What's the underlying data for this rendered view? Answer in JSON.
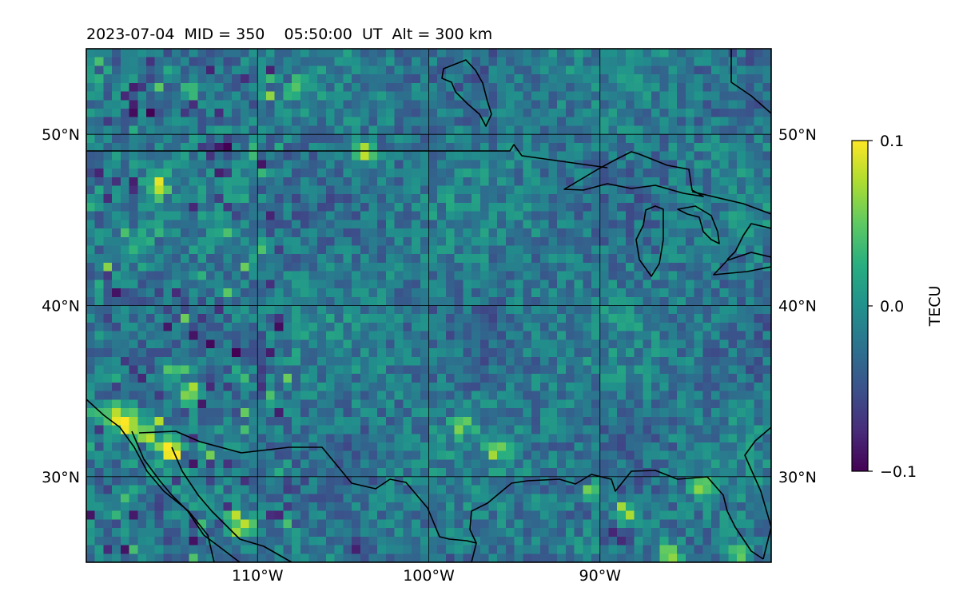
{
  "chart_data": {
    "type": "heatmap",
    "title": "2023-07-04  MID = 350    05:50:00  UT  Alt = 300 km",
    "map": {
      "lon_range": [
        -120,
        -80
      ],
      "lat_range": [
        25,
        55
      ],
      "lon_ticks": [
        -110,
        -100,
        -90
      ],
      "lon_tick_labels": [
        "110°W",
        "100°W",
        "90°W"
      ],
      "lat_ticks": [
        30,
        40,
        50
      ],
      "lat_tick_labels": [
        "30°N",
        "40°N",
        "50°N"
      ],
      "grid": true,
      "coastlines": true
    },
    "colorbar": {
      "label": "TECU",
      "colormap": "viridis",
      "vmin": -0.1,
      "vmax": 0.1,
      "ticks": [
        0.1,
        0.0,
        -0.1
      ],
      "tick_labels": [
        "0.1",
        "0.0",
        "−0.1"
      ]
    },
    "field": {
      "grid_resolution_deg": 0.5,
      "background_value": -0.02,
      "features": [
        {
          "lon": -118.3,
          "lat": 33.5,
          "value": 0.1
        },
        {
          "lon": -117.5,
          "lat": 33.0,
          "value": 0.1
        },
        {
          "lon": -116.5,
          "lat": 32.3,
          "value": 0.1
        },
        {
          "lon": -115.2,
          "lat": 31.6,
          "value": 0.1
        },
        {
          "lon": -115.8,
          "lat": 28.5,
          "value": -0.1
        },
        {
          "lon": -111.0,
          "lat": 27.0,
          "value": 0.1
        },
        {
          "lon": -104.2,
          "lat": 25.8,
          "value": -0.1
        },
        {
          "lon": -103.8,
          "lat": 49.0,
          "value": 0.1
        },
        {
          "lon": -115.8,
          "lat": 46.8,
          "value": 0.1
        },
        {
          "lon": -114.0,
          "lat": 35.0,
          "value": 0.08
        },
        {
          "lon": -110.0,
          "lat": 37.5,
          "value": -0.08
        },
        {
          "lon": -112.5,
          "lat": 49.1,
          "value": -0.08
        },
        {
          "lon": -108.0,
          "lat": 52.8,
          "value": 0.05
        },
        {
          "lon": -114.0,
          "lat": 52.5,
          "value": 0.05
        },
        {
          "lon": -88.5,
          "lat": 28.0,
          "value": 0.08
        },
        {
          "lon": -90.5,
          "lat": 29.0,
          "value": 0.08
        },
        {
          "lon": -86.0,
          "lat": 25.5,
          "value": 0.1
        },
        {
          "lon": -89.0,
          "lat": 26.5,
          "value": -0.08
        },
        {
          "lon": -84.0,
          "lat": 29.5,
          "value": 0.08
        },
        {
          "lon": -82.0,
          "lat": 25.5,
          "value": 0.08
        },
        {
          "lon": -96.0,
          "lat": 31.5,
          "value": 0.06
        },
        {
          "lon": -98.0,
          "lat": 33.0,
          "value": 0.05
        }
      ]
    }
  }
}
